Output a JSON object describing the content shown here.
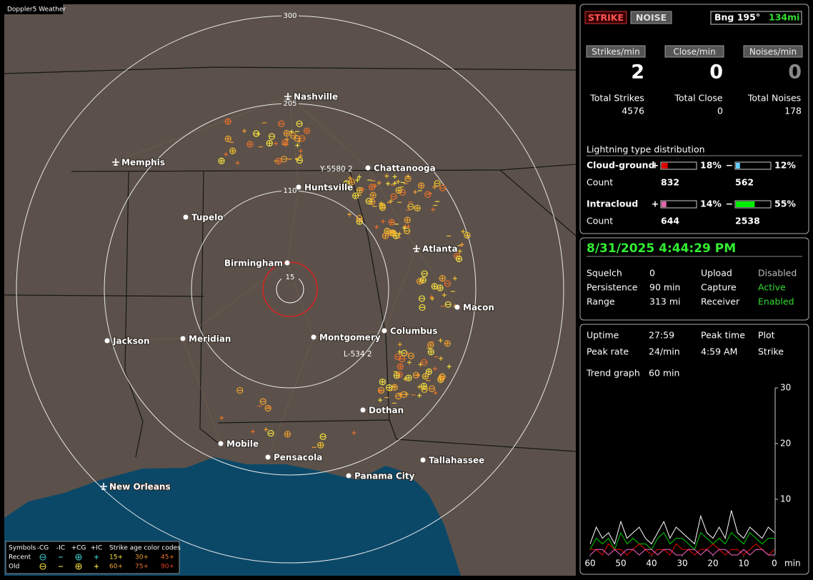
{
  "map": {
    "title": "Doppler5 Weather",
    "range_labels": [
      "300",
      "205",
      "110",
      "15"
    ],
    "cities": [
      "Nashville",
      "Memphis",
      "Chattanooga",
      "Huntsville",
      "Tupelo",
      "Atlanta",
      "Birmingham",
      "Macon",
      "Jackson",
      "Meridian",
      "Montgomery",
      "Columbus",
      "Dothan",
      "Mobile",
      "Pensacola",
      "Tallahassee",
      "Panama City",
      "New Orleans"
    ],
    "storm_labels": [
      "Y-5580 2",
      "L-534 2"
    ]
  },
  "legend": {
    "symbols_label": "Symbols",
    "symbol_headers": [
      "-CG",
      "-IC",
      "+CG",
      "+IC"
    ],
    "age_header": "Strike age color codes",
    "rows": [
      "Recent",
      "Old"
    ],
    "ages": [
      [
        "15+",
        "30+",
        "45+"
      ],
      [
        "60+",
        "75+",
        "90+"
      ]
    ]
  },
  "stats": {
    "mode_buttons": [
      "STRIKE",
      "NOISE"
    ],
    "bearing": "Bng 195°",
    "distance": "134mi",
    "rates": [
      {
        "label": "Strikes/min",
        "value": "2"
      },
      {
        "label": "Close/min",
        "value": "0"
      },
      {
        "label": "Noises/min",
        "value": "0"
      }
    ],
    "totals": [
      {
        "label": "Total Strikes",
        "value": "4576"
      },
      {
        "label": "Total Close",
        "value": "0"
      },
      {
        "label": "Total Noises",
        "value": "178"
      }
    ],
    "distribution": {
      "title": "Lightning type distribution",
      "count_label": "Count",
      "rows": [
        {
          "name": "Cloud-ground",
          "pos": {
            "sign": "+",
            "value": 18,
            "label": "18%",
            "color": "#e00000"
          },
          "neg": {
            "sign": "−",
            "value": 12,
            "label": "12%",
            "color": "#66ccff"
          },
          "counts": [
            "832",
            "562"
          ]
        },
        {
          "name": "Intracloud",
          "pos": {
            "sign": "+",
            "value": 14,
            "label": "14%",
            "color": "#e066aa"
          },
          "neg": {
            "sign": "−",
            "value": 55,
            "label": "55%",
            "color": "#00ee00"
          },
          "counts": [
            "644",
            "2538"
          ]
        }
      ]
    }
  },
  "status": {
    "datetime": "8/31/2025 4:44:29 PM",
    "fields": [
      {
        "label": "Squelch",
        "value": "0",
        "color": "#ffffff"
      },
      {
        "label": "Persistence",
        "value": "90 min",
        "color": "#ffffff"
      },
      {
        "label": "Range",
        "value": "313 mi",
        "color": "#ffffff"
      },
      {
        "label": "Upload",
        "value": "Disabled",
        "color": "#bbbbbb"
      },
      {
        "label": "Capture",
        "value": "Active",
        "color": "#33dd33"
      },
      {
        "label": "Receiver",
        "value": "Enabled",
        "color": "#33dd33"
      }
    ]
  },
  "trend": {
    "items": [
      {
        "label": "Uptime",
        "value": "27:59"
      },
      {
        "label": "Peak rate",
        "value": "24/min"
      },
      {
        "label": "Peak time",
        "value": "4:59 AM"
      },
      {
        "label": "Plot",
        "value": "Strike"
      }
    ],
    "graph_label": "Trend graph",
    "graph_span": "60 min",
    "x_unit": "min",
    "xlim": [
      60,
      0
    ],
    "ylim": [
      0,
      30
    ],
    "xticks": [
      60,
      50,
      40,
      30,
      20,
      10,
      0
    ],
    "yticks": [
      10,
      20,
      30
    ],
    "x": [
      60,
      58,
      56,
      54,
      52,
      50,
      48,
      46,
      44,
      42,
      40,
      38,
      36,
      34,
      32,
      30,
      28,
      26,
      24,
      22,
      20,
      18,
      16,
      14,
      12,
      10,
      8,
      6,
      4,
      2,
      0
    ],
    "series": [
      {
        "color": "#ffffff",
        "values": [
          2,
          5,
          3,
          4,
          2,
          6,
          3,
          4,
          5,
          3,
          2,
          4,
          6,
          3,
          5,
          4,
          3,
          2,
          7,
          4,
          3,
          5,
          3,
          8,
          4,
          3,
          5,
          4,
          3,
          5,
          4
        ]
      },
      {
        "color": "#00cc00",
        "values": [
          1,
          3,
          2,
          3,
          1,
          4,
          2,
          3,
          2,
          2,
          1,
          3,
          4,
          2,
          3,
          3,
          2,
          1,
          4,
          3,
          2,
          3,
          2,
          4,
          3,
          2,
          4,
          3,
          2,
          3,
          3
        ]
      },
      {
        "color": "#ee0000",
        "values": [
          1,
          1,
          0,
          2,
          1,
          1,
          0,
          1,
          2,
          1,
          0,
          1,
          1,
          0,
          2,
          1,
          1,
          0,
          1,
          1,
          2,
          1,
          0,
          1,
          1,
          0,
          1,
          2,
          1,
          0,
          1
        ]
      },
      {
        "color": "#ff66cc",
        "values": [
          0,
          1,
          1,
          0,
          1,
          0,
          1,
          1,
          0,
          1,
          1,
          0,
          1,
          1,
          0,
          0,
          1,
          1,
          0,
          1,
          0,
          1,
          1,
          0,
          0,
          1,
          0,
          1,
          1,
          0,
          0
        ]
      }
    ]
  }
}
